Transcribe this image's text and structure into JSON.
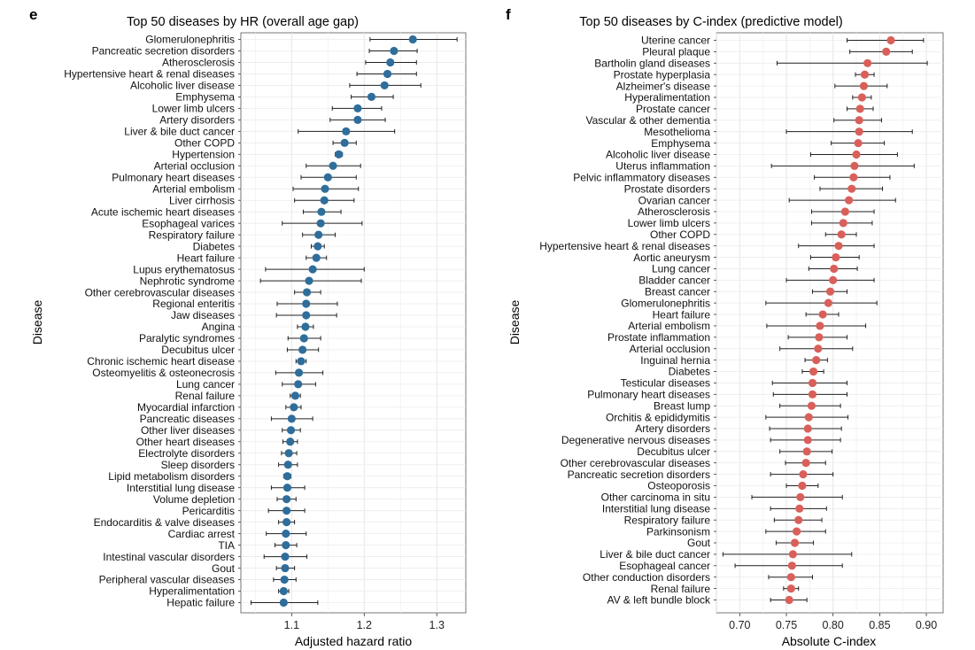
{
  "chart_data": [
    {
      "panel_letter": "e",
      "type": "scatter",
      "title": "Top 50 diseases by HR (overall age gap)",
      "xlabel": "Adjusted hazard ratio",
      "ylabel": "Disease",
      "xlim": [
        1.03,
        1.34
      ],
      "xticks": [
        1.1,
        1.2,
        1.3
      ],
      "grid": true,
      "marker_color": "#2f6e9b",
      "points": [
        {
          "label": "Glomerulonephritis",
          "value": 1.267,
          "lo": 1.208,
          "hi": 1.328
        },
        {
          "label": "Pancreatic secretion disorders",
          "value": 1.241,
          "lo": 1.207,
          "hi": 1.273
        },
        {
          "label": "Atherosclerosis",
          "value": 1.236,
          "lo": 1.202,
          "hi": 1.272
        },
        {
          "label": "Hypertensive heart & renal diseases",
          "value": 1.232,
          "lo": 1.19,
          "hi": 1.272
        },
        {
          "label": "Alcoholic liver disease",
          "value": 1.228,
          "lo": 1.18,
          "hi": 1.278
        },
        {
          "label": "Emphysema",
          "value": 1.21,
          "lo": 1.182,
          "hi": 1.24
        },
        {
          "label": "Lower limb ulcers",
          "value": 1.191,
          "lo": 1.156,
          "hi": 1.224
        },
        {
          "label": "Artery disorders",
          "value": 1.191,
          "lo": 1.153,
          "hi": 1.229
        },
        {
          "label": "Liver & bile duct cancer",
          "value": 1.175,
          "lo": 1.109,
          "hi": 1.242
        },
        {
          "label": "Other COPD",
          "value": 1.173,
          "lo": 1.157,
          "hi": 1.189
        },
        {
          "label": "Hypertension",
          "value": 1.165,
          "lo": 1.16,
          "hi": 1.17
        },
        {
          "label": "Arterial occlusion",
          "value": 1.157,
          "lo": 1.12,
          "hi": 1.195
        },
        {
          "label": "Pulmonary heart diseases",
          "value": 1.15,
          "lo": 1.113,
          "hi": 1.189
        },
        {
          "label": "Arterial embolism",
          "value": 1.146,
          "lo": 1.102,
          "hi": 1.192
        },
        {
          "label": "Liver cirrhosis",
          "value": 1.145,
          "lo": 1.104,
          "hi": 1.186
        },
        {
          "label": "Acute ischemic heart diseases",
          "value": 1.141,
          "lo": 1.116,
          "hi": 1.168
        },
        {
          "label": "Esophageal varices",
          "value": 1.14,
          "lo": 1.087,
          "hi": 1.197
        },
        {
          "label": "Respiratory failure",
          "value": 1.137,
          "lo": 1.115,
          "hi": 1.16
        },
        {
          "label": "Diabetes",
          "value": 1.136,
          "lo": 1.127,
          "hi": 1.145
        },
        {
          "label": "Heart failure",
          "value": 1.134,
          "lo": 1.12,
          "hi": 1.148
        },
        {
          "label": "Lupus erythematosus",
          "value": 1.129,
          "lo": 1.064,
          "hi": 1.2
        },
        {
          "label": "Nephrotic syndrome",
          "value": 1.124,
          "lo": 1.057,
          "hi": 1.196
        },
        {
          "label": "Other cerebrovascular diseases",
          "value": 1.121,
          "lo": 1.104,
          "hi": 1.14
        },
        {
          "label": "Regional enteritis",
          "value": 1.12,
          "lo": 1.08,
          "hi": 1.163
        },
        {
          "label": "Jaw diseases",
          "value": 1.12,
          "lo": 1.079,
          "hi": 1.162
        },
        {
          "label": "Angina",
          "value": 1.119,
          "lo": 1.108,
          "hi": 1.13
        },
        {
          "label": "Paralytic syndromes",
          "value": 1.117,
          "lo": 1.095,
          "hi": 1.14
        },
        {
          "label": "Decubitus ulcer",
          "value": 1.115,
          "lo": 1.094,
          "hi": 1.137
        },
        {
          "label": "Chronic ischemic heart disease",
          "value": 1.113,
          "lo": 1.106,
          "hi": 1.12
        },
        {
          "label": "Osteomyelitis & osteonecrosis",
          "value": 1.11,
          "lo": 1.078,
          "hi": 1.143
        },
        {
          "label": "Lung cancer",
          "value": 1.109,
          "lo": 1.087,
          "hi": 1.133
        },
        {
          "label": "Renal failure",
          "value": 1.105,
          "lo": 1.098,
          "hi": 1.112
        },
        {
          "label": "Myocardial infarction",
          "value": 1.103,
          "lo": 1.092,
          "hi": 1.113
        },
        {
          "label": "Pancreatic diseases",
          "value": 1.1,
          "lo": 1.072,
          "hi": 1.129
        },
        {
          "label": "Other liver diseases",
          "value": 1.099,
          "lo": 1.087,
          "hi": 1.112
        },
        {
          "label": "Other heart diseases",
          "value": 1.098,
          "lo": 1.088,
          "hi": 1.108
        },
        {
          "label": "Electrolyte disorders",
          "value": 1.096,
          "lo": 1.086,
          "hi": 1.107
        },
        {
          "label": "Sleep disorders",
          "value": 1.095,
          "lo": 1.082,
          "hi": 1.108
        },
        {
          "label": "Lipid metabolism disorders",
          "value": 1.094,
          "lo": 1.089,
          "hi": 1.099
        },
        {
          "label": "Interstitial lung disease",
          "value": 1.094,
          "lo": 1.072,
          "hi": 1.118
        },
        {
          "label": "Volume depletion",
          "value": 1.093,
          "lo": 1.08,
          "hi": 1.106
        },
        {
          "label": "Pericarditis",
          "value": 1.093,
          "lo": 1.068,
          "hi": 1.118
        },
        {
          "label": "Endocarditis & valve diseases",
          "value": 1.093,
          "lo": 1.082,
          "hi": 1.104
        },
        {
          "label": "Cardiac arrest",
          "value": 1.092,
          "lo": 1.065,
          "hi": 1.12
        },
        {
          "label": "TIA",
          "value": 1.092,
          "lo": 1.077,
          "hi": 1.107
        },
        {
          "label": "Intestinal vascular disorders",
          "value": 1.091,
          "lo": 1.062,
          "hi": 1.121
        },
        {
          "label": "Gout",
          "value": 1.091,
          "lo": 1.079,
          "hi": 1.104
        },
        {
          "label": "Peripheral vascular diseases",
          "value": 1.09,
          "lo": 1.075,
          "hi": 1.106
        },
        {
          "label": "Hyperalimentation",
          "value": 1.089,
          "lo": 1.082,
          "hi": 1.096
        },
        {
          "label": "Hepatic failure",
          "value": 1.089,
          "lo": 1.044,
          "hi": 1.136
        }
      ]
    },
    {
      "panel_letter": "f",
      "type": "scatter",
      "title": "Top 50 diseases by C-index (predictive model)",
      "xlabel": "Absolute C-index",
      "ylabel": "Disease",
      "xlim": [
        0.675,
        0.918
      ],
      "xticks": [
        0.7,
        0.75,
        0.8,
        0.85,
        0.9
      ],
      "xtick_labels": [
        "0.70",
        "0.75",
        "0.80",
        "0.85",
        "0.90"
      ],
      "grid": true,
      "marker_color": "#d9605a",
      "points": [
        {
          "label": "Uterine cancer",
          "value": 0.862,
          "lo": 0.815,
          "hi": 0.897
        },
        {
          "label": "Pleural plaque",
          "value": 0.857,
          "lo": 0.818,
          "hi": 0.885
        },
        {
          "label": "Bartholin gland diseases",
          "value": 0.837,
          "lo": 0.74,
          "hi": 0.901
        },
        {
          "label": "Prostate hyperplasia",
          "value": 0.834,
          "lo": 0.824,
          "hi": 0.844
        },
        {
          "label": "Alzheimer's disease",
          "value": 0.833,
          "lo": 0.802,
          "hi": 0.858
        },
        {
          "label": "Hyperalimentation",
          "value": 0.831,
          "lo": 0.821,
          "hi": 0.841
        },
        {
          "label": "Prostate cancer",
          "value": 0.829,
          "lo": 0.815,
          "hi": 0.843
        },
        {
          "label": "Vascular & other dementia",
          "value": 0.828,
          "lo": 0.801,
          "hi": 0.852
        },
        {
          "label": "Mesothelioma",
          "value": 0.828,
          "lo": 0.75,
          "hi": 0.885
        },
        {
          "label": "Emphysema",
          "value": 0.827,
          "lo": 0.798,
          "hi": 0.855
        },
        {
          "label": "Alcoholic liver disease",
          "value": 0.825,
          "lo": 0.776,
          "hi": 0.869
        },
        {
          "label": "Uterus inflammation",
          "value": 0.823,
          "lo": 0.734,
          "hi": 0.887
        },
        {
          "label": "Pelvic inflammatory diseases",
          "value": 0.822,
          "lo": 0.78,
          "hi": 0.861
        },
        {
          "label": "Prostate disorders",
          "value": 0.82,
          "lo": 0.786,
          "hi": 0.853
        },
        {
          "label": "Ovarian cancer",
          "value": 0.817,
          "lo": 0.753,
          "hi": 0.867
        },
        {
          "label": "Atherosclerosis",
          "value": 0.813,
          "lo": 0.777,
          "hi": 0.844
        },
        {
          "label": "Lower limb ulcers",
          "value": 0.811,
          "lo": 0.777,
          "hi": 0.842
        },
        {
          "label": "Other COPD",
          "value": 0.809,
          "lo": 0.792,
          "hi": 0.825
        },
        {
          "label": "Hypertensive heart & renal diseases",
          "value": 0.806,
          "lo": 0.763,
          "hi": 0.844
        },
        {
          "label": "Aortic aneurysm",
          "value": 0.803,
          "lo": 0.776,
          "hi": 0.828
        },
        {
          "label": "Lung cancer",
          "value": 0.801,
          "lo": 0.774,
          "hi": 0.826
        },
        {
          "label": "Bladder cancer",
          "value": 0.8,
          "lo": 0.75,
          "hi": 0.844
        },
        {
          "label": "Breast cancer",
          "value": 0.797,
          "lo": 0.778,
          "hi": 0.815
        },
        {
          "label": "Glomerulonephritis",
          "value": 0.795,
          "lo": 0.728,
          "hi": 0.847
        },
        {
          "label": "Heart failure",
          "value": 0.789,
          "lo": 0.771,
          "hi": 0.806
        },
        {
          "label": "Arterial embolism",
          "value": 0.786,
          "lo": 0.729,
          "hi": 0.835
        },
        {
          "label": "Prostate inflammation",
          "value": 0.785,
          "lo": 0.752,
          "hi": 0.815
        },
        {
          "label": "Arterial occlusion",
          "value": 0.784,
          "lo": 0.743,
          "hi": 0.821
        },
        {
          "label": "Inguinal hernia",
          "value": 0.782,
          "lo": 0.77,
          "hi": 0.794
        },
        {
          "label": "Diabetes",
          "value": 0.779,
          "lo": 0.767,
          "hi": 0.79
        },
        {
          "label": "Testicular diseases",
          "value": 0.778,
          "lo": 0.735,
          "hi": 0.815
        },
        {
          "label": "Pulmonary heart diseases",
          "value": 0.778,
          "lo": 0.736,
          "hi": 0.815
        },
        {
          "label": "Breast lump",
          "value": 0.777,
          "lo": 0.743,
          "hi": 0.808
        },
        {
          "label": "Orchitis & epididymitis",
          "value": 0.774,
          "lo": 0.728,
          "hi": 0.816
        },
        {
          "label": "Artery disorders",
          "value": 0.773,
          "lo": 0.732,
          "hi": 0.809
        },
        {
          "label": "Degenerative nervous diseases",
          "value": 0.773,
          "lo": 0.733,
          "hi": 0.808
        },
        {
          "label": "Decubitus ulcer",
          "value": 0.772,
          "lo": 0.743,
          "hi": 0.799
        },
        {
          "label": "Other cerebrovascular diseases",
          "value": 0.771,
          "lo": 0.749,
          "hi": 0.792
        },
        {
          "label": "Pancreatic secretion disorders",
          "value": 0.768,
          "lo": 0.733,
          "hi": 0.8
        },
        {
          "label": "Osteoporosis",
          "value": 0.767,
          "lo": 0.75,
          "hi": 0.784
        },
        {
          "label": "Other carcinoma in situ",
          "value": 0.765,
          "lo": 0.713,
          "hi": 0.81
        },
        {
          "label": "Interstitial lung disease",
          "value": 0.764,
          "lo": 0.733,
          "hi": 0.793
        },
        {
          "label": "Respiratory failure",
          "value": 0.763,
          "lo": 0.737,
          "hi": 0.788
        },
        {
          "label": "Parkinsonism",
          "value": 0.761,
          "lo": 0.728,
          "hi": 0.792
        },
        {
          "label": "Gout",
          "value": 0.759,
          "lo": 0.739,
          "hi": 0.779
        },
        {
          "label": "Liver & bile duct cancer",
          "value": 0.757,
          "lo": 0.682,
          "hi": 0.82
        },
        {
          "label": "Esophageal cancer",
          "value": 0.756,
          "lo": 0.695,
          "hi": 0.81
        },
        {
          "label": "Other conduction disorders",
          "value": 0.755,
          "lo": 0.731,
          "hi": 0.778
        },
        {
          "label": "Renal failure",
          "value": 0.755,
          "lo": 0.747,
          "hi": 0.763
        },
        {
          "label": "AV & left bundle block",
          "value": 0.753,
          "lo": 0.733,
          "hi": 0.772
        }
      ]
    }
  ]
}
